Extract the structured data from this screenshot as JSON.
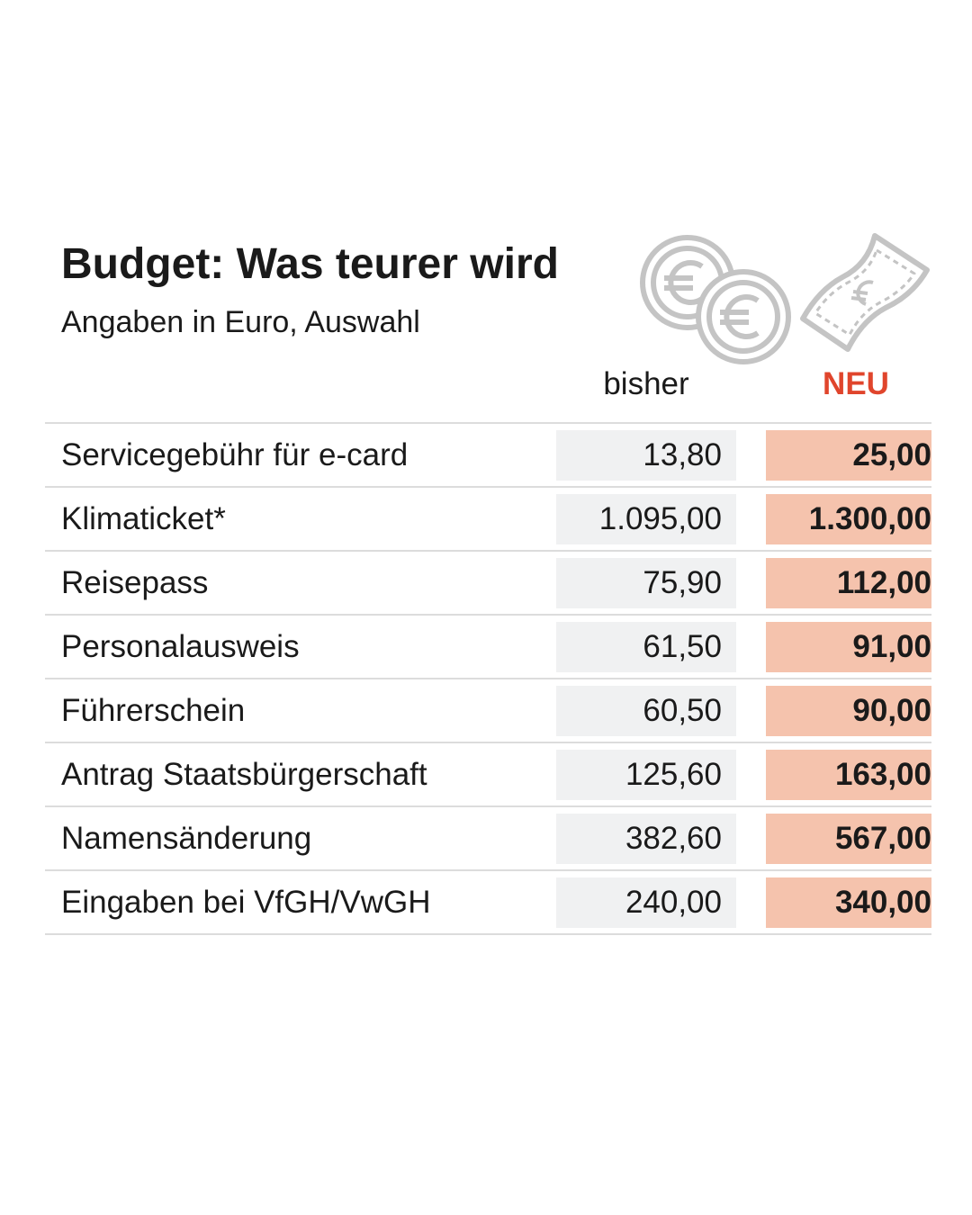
{
  "chart_data": {
    "type": "table",
    "title": "Budget: Was teurer wird",
    "subtitle": "Angaben in Euro, Auswahl",
    "columns": [
      "bisher",
      "NEU"
    ],
    "rows": [
      {
        "label": "Servicegebühr für e-card",
        "bisher": "13,80",
        "neu": "25,00"
      },
      {
        "label": "Klimaticket*",
        "bisher": "1.095,00",
        "neu": "1.300,00"
      },
      {
        "label": "Reisepass",
        "bisher": "75,90",
        "neu": "112,00"
      },
      {
        "label": "Personalausweis",
        "bisher": "61,50",
        "neu": "91,00"
      },
      {
        "label": "Führerschein",
        "bisher": "60,50",
        "neu": "90,00"
      },
      {
        "label": "Antrag Staatsbürgerschaft",
        "bisher": "125,60",
        "neu": "163,00"
      },
      {
        "label": "Namensänderung",
        "bisher": "382,60",
        "neu": "567,00"
      },
      {
        "label": "Eingaben bei VfGH/VwGH",
        "bisher": "240,00",
        "neu": "340,00"
      }
    ],
    "colors": {
      "accent": "#e0452c",
      "old_cell": "#f0f1f2",
      "new_cell": "#f5c3ad",
      "icon": "#c4c4c4"
    }
  },
  "icons": [
    "euro-coins-icon",
    "euro-banknote-icon"
  ]
}
